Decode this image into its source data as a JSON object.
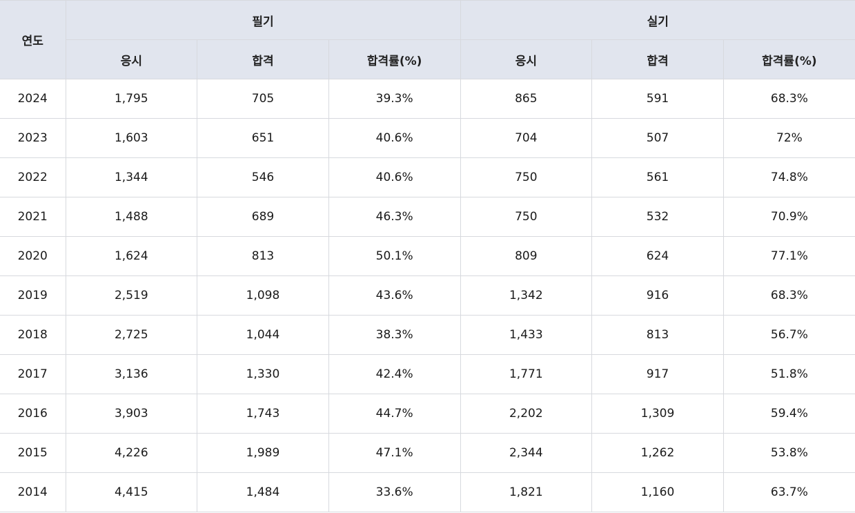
{
  "table": {
    "year_header": "연도",
    "groups": [
      "필기",
      "실기"
    ],
    "sub_headers": [
      "응시",
      "합격",
      "합격률(%)",
      "응시",
      "합격",
      "합격률(%)"
    ],
    "rows": [
      [
        "2024",
        "1,795",
        "705",
        "39.3%",
        "865",
        "591",
        "68.3%"
      ],
      [
        "2023",
        "1,603",
        "651",
        "40.6%",
        "704",
        "507",
        "72%"
      ],
      [
        "2022",
        "1,344",
        "546",
        "40.6%",
        "750",
        "561",
        "74.8%"
      ],
      [
        "2021",
        "1,488",
        "689",
        "46.3%",
        "750",
        "532",
        "70.9%"
      ],
      [
        "2020",
        "1,624",
        "813",
        "50.1%",
        "809",
        "624",
        "77.1%"
      ],
      [
        "2019",
        "2,519",
        "1,098",
        "43.6%",
        "1,342",
        "916",
        "68.3%"
      ],
      [
        "2018",
        "2,725",
        "1,044",
        "38.3%",
        "1,433",
        "813",
        "56.7%"
      ],
      [
        "2017",
        "3,136",
        "1,330",
        "42.4%",
        "1,771",
        "917",
        "51.8%"
      ],
      [
        "2016",
        "3,903",
        "1,743",
        "44.7%",
        "2,202",
        "1,309",
        "59.4%"
      ],
      [
        "2015",
        "4,226",
        "1,989",
        "47.1%",
        "2,344",
        "1,262",
        "53.8%"
      ],
      [
        "2014",
        "4,415",
        "1,484",
        "33.6%",
        "1,821",
        "1,160",
        "63.7%"
      ]
    ]
  },
  "colors": {
    "header_bg": "#e1e5ee",
    "border": "#d7d9de",
    "cell_bg": "#ffffff"
  }
}
